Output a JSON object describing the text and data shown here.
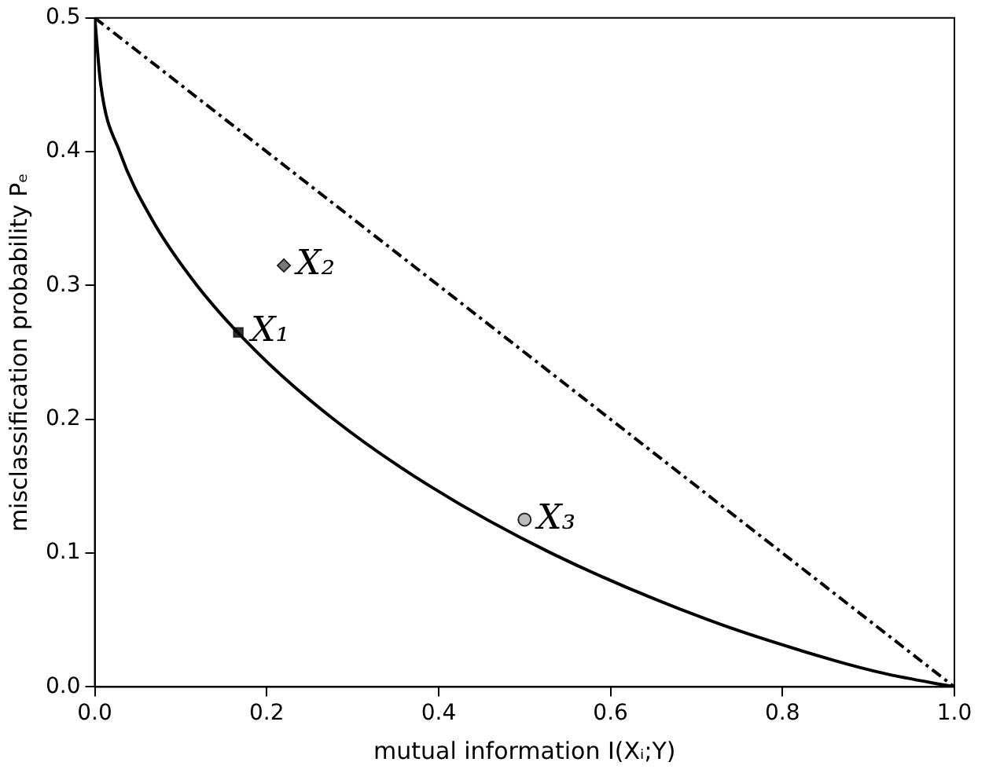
{
  "chart_data": {
    "type": "line",
    "xlabel": "mutual information I(Xᵢ;Y)",
    "ylabel": "misclassification probability Pₑ",
    "xlim": [
      0,
      1
    ],
    "ylim": [
      0,
      0.5
    ],
    "xticks": [
      {
        "value": 0,
        "label": "0.0"
      },
      {
        "value": 0.2,
        "label": "0.2"
      },
      {
        "value": 0.4,
        "label": "0.4"
      },
      {
        "value": 0.6,
        "label": "0.6"
      },
      {
        "value": 0.8,
        "label": "0.8"
      },
      {
        "value": 1,
        "label": "1.0"
      }
    ],
    "yticks": [
      {
        "value": 0,
        "label": "0.0"
      },
      {
        "value": 0.1,
        "label": "0.1"
      },
      {
        "value": 0.2,
        "label": "0.2"
      },
      {
        "value": 0.3,
        "label": "0.3"
      },
      {
        "value": 0.4,
        "label": "0.4"
      },
      {
        "value": 0.5,
        "label": "0.5"
      }
    ],
    "grid": false,
    "legend": false,
    "series": [
      {
        "color": "#000000",
        "marker": "none",
        "line_style": "solid",
        "x": [
          0,
          0.007,
          0.029,
          0.066,
          0.119,
          0.189,
          0.278,
          0.39,
          0.531,
          0.714,
          0.859,
          0.919,
          1
        ],
        "values": [
          0.5,
          0.45,
          0.4,
          0.35,
          0.3,
          0.25,
          0.2,
          0.15,
          0.1,
          0.05,
          0.02,
          0.01,
          0
        ]
      },
      {
        "color": "#000000",
        "marker": "none",
        "line_style": "dashed",
        "x": [
          0,
          1
        ],
        "values": [
          0.5,
          0
        ]
      },
      {
        "type": "scatter",
        "name": "X₁",
        "color": "#333333",
        "marker": "square",
        "x": [
          0.167
        ],
        "values": [
          0.265
        ]
      },
      {
        "type": "scatter",
        "name": "X₂",
        "color": "#777777",
        "marker": "diamond",
        "x": [
          0.22
        ],
        "values": [
          0.315
        ]
      },
      {
        "type": "scatter",
        "name": "X₃",
        "color": "#bbbbbb",
        "marker": "circle",
        "x": [
          0.5
        ],
        "values": [
          0.125
        ]
      }
    ]
  }
}
